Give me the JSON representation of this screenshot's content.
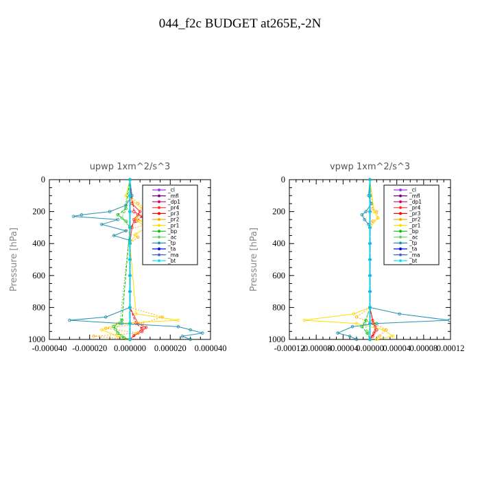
{
  "page": {
    "title": "044_f2c  BUDGET at265E,-2N"
  },
  "chart_data": [
    {
      "type": "line",
      "title": "upwp   1xm^2/s^3",
      "ylabel": "Pressure [hPa]",
      "xlabel": "",
      "xlim": [
        -4e-05,
        4e-05
      ],
      "ylim": [
        1000,
        0
      ],
      "xtick_labels": [
        "-0.000040",
        "-0.000020",
        "0.000000",
        "0.000020",
        "0.000040"
      ],
      "ytick_labels": [
        "0",
        "200",
        "400",
        "600",
        "800",
        "1000"
      ],
      "legend_position": "top-right",
      "series": [
        {
          "name": "_cl",
          "color": "#9b30ff",
          "p": [
            0,
            100,
            200,
            300,
            400,
            500,
            600,
            700,
            800,
            900,
            1000
          ],
          "x": [
            0,
            0,
            0,
            0,
            0,
            0,
            0,
            0,
            0,
            0,
            0
          ]
        },
        {
          "name": "_mfl",
          "color": "#800080",
          "p": [
            0,
            100,
            200,
            300,
            400,
            500,
            600,
            700,
            800,
            900,
            1000
          ],
          "x": [
            0,
            0,
            0,
            0,
            0,
            0,
            0,
            0,
            0,
            0,
            0
          ]
        },
        {
          "name": "_dp1",
          "color": "#d6006a",
          "p": [
            0,
            100,
            200,
            300,
            400,
            500,
            600,
            700,
            800,
            900,
            1000
          ],
          "x": [
            0,
            0,
            0,
            0,
            0,
            0,
            0,
            0,
            0,
            0,
            0
          ]
        },
        {
          "name": "_pr4",
          "color": "#ff2a2a",
          "p": [
            0,
            150,
            200,
            220,
            250,
            300,
            400,
            800,
            900,
            925,
            950,
            975,
            1000
          ],
          "x": [
            0,
            1e-06,
            5e-06,
            4e-06,
            2e-06,
            1e-06,
            0,
            0,
            4e-06,
            8e-06,
            6e-06,
            2e-06,
            0
          ]
        },
        {
          "name": "_pr3",
          "color": "#ff0000",
          "p": [
            0,
            200,
            230,
            260,
            300,
            800,
            900,
            930,
            960,
            1000
          ],
          "x": [
            0,
            2e-06,
            6e-06,
            3e-06,
            0,
            0,
            3e-06,
            6e-06,
            4e-06,
            0
          ]
        },
        {
          "name": "_pr2",
          "color": "#ffaa00",
          "p": [
            0,
            100,
            150,
            200,
            240,
            280,
            320,
            360,
            400,
            800,
            860,
            900,
            930,
            960,
            980,
            1000
          ],
          "x": [
            0,
            0,
            4e-06,
            1e-05,
            3e-06,
            8e-06,
            -2e-06,
            4e-06,
            0,
            0,
            1.6e-05,
            6e-06,
            -1.2e-05,
            4e-06,
            -1.8e-05,
            0
          ]
        },
        {
          "name": "_pr1",
          "color": "#ffdd00",
          "p": [
            0,
            100,
            180,
            220,
            260,
            300,
            340,
            400,
            840,
            880,
            900,
            940,
            980,
            1000
          ],
          "x": [
            0,
            -2e-06,
            6e-06,
            1.4e-05,
            4e-06,
            8e-06,
            3e-06,
            0,
            3e-06,
            2.4e-05,
            -6e-06,
            -1.4e-05,
            -6e-06,
            0
          ]
        },
        {
          "name": "_bp",
          "color": "#00c000",
          "p": [
            0,
            180,
            220,
            260,
            300,
            880,
            920,
            960,
            990,
            1000
          ],
          "x": [
            0,
            -2e-06,
            -6e-06,
            -2e-06,
            0,
            -4e-06,
            -8e-06,
            -6e-06,
            -3e-06,
            0
          ]
        },
        {
          "name": "_ac",
          "color": "#60d060",
          "p": [
            0,
            200,
            240,
            300,
            900,
            940,
            980,
            1000
          ],
          "x": [
            0,
            -3e-06,
            -4e-06,
            0,
            -5e-06,
            -7e-06,
            -4e-06,
            0
          ]
        },
        {
          "name": "_tp",
          "color": "#2090b0",
          "p": [
            0,
            100,
            160,
            200,
            220,
            230,
            250,
            280,
            320,
            350,
            380,
            800,
            860,
            880,
            900,
            920,
            940,
            960,
            980,
            1000
          ],
          "x": [
            0,
            1e-06,
            -2e-06,
            -1e-05,
            -2.4e-05,
            -2.8e-05,
            -6e-06,
            -1.4e-05,
            -2e-06,
            -8e-06,
            0,
            0,
            -1.2e-05,
            -3e-05,
            -4e-06,
            2.4e-05,
            3e-05,
            3.6e-05,
            2.6e-05,
            3e-05
          ]
        },
        {
          "name": "_ta",
          "color": "#0000ff",
          "p": [
            0,
            100,
            200,
            300,
            400,
            500,
            600,
            700,
            800,
            900,
            1000
          ],
          "x": [
            0,
            0,
            0,
            0,
            0,
            0,
            0,
            0,
            0,
            0,
            0
          ]
        },
        {
          "name": "_ma",
          "color": "#4060e0",
          "p": [
            0,
            100,
            200,
            300,
            400,
            500,
            600,
            700,
            800,
            900,
            1000
          ],
          "x": [
            0,
            0,
            0,
            0,
            0,
            0,
            0,
            0,
            0,
            0,
            0
          ]
        },
        {
          "name": "_bt",
          "color": "#00e5e5",
          "p": [
            0,
            100,
            200,
            300,
            400,
            500,
            600,
            700,
            800,
            900,
            1000
          ],
          "x": [
            0,
            0,
            0,
            0,
            0,
            0,
            0,
            0,
            0,
            0,
            0
          ]
        }
      ]
    },
    {
      "type": "line",
      "title": "vpwp   1xm^2/s^3",
      "ylabel": "Pressure [hPa]",
      "xlabel": "",
      "xlim": [
        -0.00012,
        0.00012
      ],
      "ylim": [
        1000,
        0
      ],
      "xtick_labels": [
        "-0.00012",
        "-0.00008",
        "-0.00004",
        "0.00000",
        "0.00004",
        "0.00008",
        "0.00012"
      ],
      "ytick_labels": [
        "0",
        "200",
        "400",
        "600",
        "800",
        "1000"
      ],
      "legend_position": "top-right",
      "series": [
        {
          "name": "_cl",
          "color": "#9b30ff",
          "p": [
            0,
            100,
            200,
            300,
            400,
            500,
            600,
            700,
            800,
            900,
            1000
          ],
          "x": [
            0,
            0,
            0,
            0,
            0,
            0,
            0,
            0,
            0,
            0,
            0
          ]
        },
        {
          "name": "_mfl",
          "color": "#800080",
          "p": [
            0,
            100,
            200,
            300,
            400,
            500,
            600,
            700,
            800,
            900,
            1000
          ],
          "x": [
            0,
            0,
            0,
            0,
            0,
            0,
            0,
            0,
            0,
            0,
            0
          ]
        },
        {
          "name": "_dp1",
          "color": "#d6006a",
          "p": [
            0,
            100,
            200,
            300,
            400,
            500,
            600,
            700,
            800,
            900,
            1000
          ],
          "x": [
            0,
            0,
            0,
            0,
            0,
            0,
            0,
            0,
            0,
            0,
            0
          ]
        },
        {
          "name": "_pr4",
          "color": "#ff2a2a",
          "p": [
            0,
            800,
            880,
            920,
            960,
            1000
          ],
          "x": [
            0,
            0,
            4e-06,
            8e-06,
            6e-06,
            0
          ]
        },
        {
          "name": "_pr3",
          "color": "#ff0000",
          "p": [
            0,
            800,
            900,
            940,
            980,
            1000
          ],
          "x": [
            0,
            0,
            5e-06,
            1e-05,
            4e-06,
            0
          ]
        },
        {
          "name": "_pr2",
          "color": "#ffaa00",
          "p": [
            0,
            180,
            200,
            240,
            260,
            300,
            800,
            860,
            900,
            940,
            980,
            1000
          ],
          "x": [
            0,
            4e-06,
            1e-05,
            1.2e-05,
            4e-06,
            0,
            0,
            -2e-05,
            6e-06,
            2.4e-05,
            1.4e-05,
            1e-05
          ]
        },
        {
          "name": "_pr1",
          "color": "#ffdd00",
          "p": [
            0,
            200,
            240,
            300,
            800,
            840,
            880,
            900,
            940,
            980,
            1000
          ],
          "x": [
            0,
            6e-06,
            1.2e-05,
            0,
            0,
            -2.4e-05,
            -9.8e-05,
            -2e-05,
            2e-05,
            3.4e-05,
            1e-05
          ]
        },
        {
          "name": "_bp",
          "color": "#00c000",
          "p": [
            0,
            800,
            880,
            920,
            960,
            1000
          ],
          "x": [
            0,
            0,
            -6e-06,
            -1.2e-05,
            -4e-06,
            0
          ]
        },
        {
          "name": "_ac",
          "color": "#60d060",
          "p": [
            0,
            800,
            900,
            950,
            1000
          ],
          "x": [
            0,
            0,
            -8e-06,
            -4e-06,
            0
          ]
        },
        {
          "name": "_tp",
          "color": "#2090b0",
          "p": [
            0,
            100,
            150,
            200,
            220,
            250,
            280,
            300,
            800,
            840,
            880,
            900,
            920,
            960,
            980,
            1000
          ],
          "x": [
            0,
            -2e-06,
            2e-06,
            -6e-06,
            -1.2e-05,
            -8e-06,
            -2e-06,
            0,
            0,
            4.4e-05,
            0.000118,
            1e-05,
            -2.6e-05,
            -4.8e-05,
            -3e-05,
            -2e-05
          ]
        },
        {
          "name": "_ta",
          "color": "#0000ff",
          "p": [
            0,
            100,
            200,
            300,
            400,
            500,
            600,
            700,
            800,
            900,
            1000
          ],
          "x": [
            0,
            0,
            0,
            0,
            0,
            0,
            0,
            0,
            0,
            0,
            0
          ]
        },
        {
          "name": "_ma",
          "color": "#4060e0",
          "p": [
            0,
            100,
            200,
            300,
            400,
            500,
            600,
            700,
            800,
            900,
            1000
          ],
          "x": [
            0,
            0,
            0,
            0,
            0,
            0,
            0,
            0,
            0,
            0,
            0
          ]
        },
        {
          "name": "_bt",
          "color": "#00e5e5",
          "p": [
            0,
            100,
            200,
            300,
            400,
            500,
            600,
            700,
            800,
            900,
            1000
          ],
          "x": [
            0,
            0,
            0,
            0,
            0,
            0,
            0,
            0,
            0,
            0,
            0
          ]
        }
      ]
    }
  ]
}
